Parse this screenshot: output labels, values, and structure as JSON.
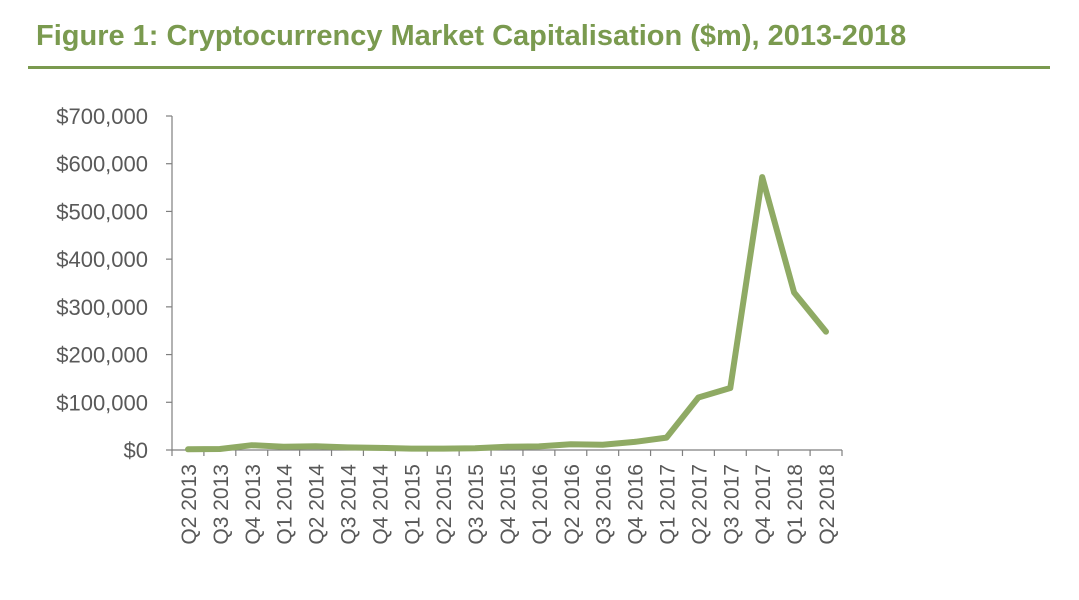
{
  "figure": {
    "title": "Figure 1: Cryptocurrency Market Capitalisation ($m), 2013-2018"
  },
  "colors": {
    "accent": "#7a9a4f",
    "line": "#8faa64",
    "axis": "#7f7f7f",
    "text": "#595959"
  },
  "chart_data": {
    "type": "line",
    "title": "Figure 1: Cryptocurrency Market Capitalisation ($m), 2013-2018",
    "xlabel": "",
    "ylabel": "",
    "ylim": [
      0,
      700000
    ],
    "yticks": [
      0,
      100000,
      200000,
      300000,
      400000,
      500000,
      600000,
      700000
    ],
    "ytick_labels": [
      "$0",
      "$100,000",
      "$200,000",
      "$300,000",
      "$400,000",
      "$500,000",
      "$600,000",
      "$700,000"
    ],
    "grid": false,
    "legend": "none",
    "categories": [
      "Q2 2013",
      "Q3 2013",
      "Q4 2013",
      "Q1 2014",
      "Q2 2014",
      "Q3 2014",
      "Q4 2014",
      "Q1 2015",
      "Q2 2015",
      "Q3 2015",
      "Q4 2015",
      "Q1 2016",
      "Q2 2016",
      "Q3 2016",
      "Q4 2016",
      "Q1 2017",
      "Q2 2017",
      "Q3 2017",
      "Q4 2017",
      "Q1 2018",
      "Q2 2018"
    ],
    "series": [
      {
        "values": [
          1500,
          2000,
          10000,
          7000,
          8000,
          5500,
          4500,
          3000,
          3000,
          3500,
          7000,
          7500,
          12000,
          11000,
          17000,
          26000,
          110000,
          130000,
          572000,
          330000,
          248000
        ]
      }
    ]
  }
}
